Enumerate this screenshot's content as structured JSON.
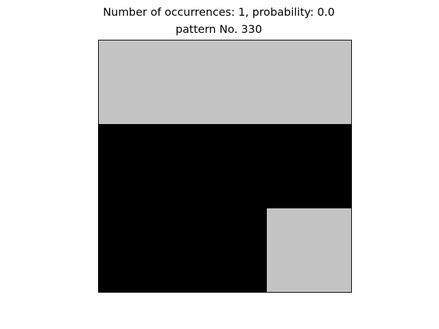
{
  "figure": {
    "title_line_1": "Number of occurrences: 1, probability: 0.0",
    "title_line_2": "pattern No. 330"
  },
  "pattern": {
    "rows": 3,
    "cols": 3,
    "cells": [
      [
        0,
        0,
        0
      ],
      [
        1,
        1,
        1
      ],
      [
        1,
        1,
        0
      ]
    ],
    "colors": {
      "0": "#c4c4c4",
      "1": "#000000"
    }
  }
}
